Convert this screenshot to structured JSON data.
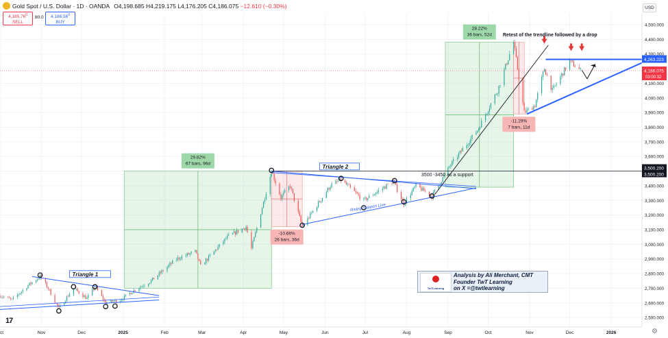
{
  "header": {
    "symbol": "Gold Spot / U.S. Dollar · 1D · OANDA",
    "open": "O4,198.685",
    "high": "H4,219.175",
    "low": "L4,176.205",
    "close": "C4,186.075",
    "change": "−12.610 (−0.30%)",
    "sell_price": "4,185.76",
    "sell_sup": "0",
    "sell_label": "SELL",
    "spread": "80.0",
    "buy_price": "4,186.56",
    "buy_sup": "0",
    "buy_label": "BUY",
    "currency": "USD"
  },
  "colors": {
    "up": "#26a69a",
    "down": "#ef5350",
    "trend_blue": "#2962ff",
    "price_red": "#f23645",
    "range_green": "#9fd8a8",
    "range_red": "#f7b5b3"
  },
  "chart_data": {
    "type": "candlestick",
    "title": "Gold Spot / U.S. Dollar · 1D · OANDA",
    "y_axis": {
      "ticks": [
        2500,
        2600,
        2700,
        2800,
        2900,
        3000,
        3100,
        3200,
        3300,
        3400,
        3500,
        3600,
        3700,
        3800,
        3900,
        4000,
        4100,
        4200,
        4300,
        4400,
        4500
      ],
      "tick_labels": [
        "2,500.000",
        "2,600.000",
        "2,700.000",
        "2,800.000",
        "2,900.000",
        "3,000.000",
        "3,100.000",
        "3,200.000",
        "3,300.000",
        "3,400.000",
        "3,500.000",
        "3,600.000",
        "3,700.000",
        "3,800.000",
        "3,900.000",
        "4,000.000",
        "4,100.000",
        "4,200.000",
        "4,300.000",
        "4,400.000",
        "4,500.000"
      ],
      "range": [
        2435,
        4575
      ]
    },
    "x_axis": {
      "labels": [
        "Oct",
        "Nov",
        "Dec",
        "2025",
        "Feb",
        "Mar",
        "Apr",
        "May",
        "Jun",
        "Jul",
        "Aug",
        "Sep",
        "Oct",
        "Nov",
        "Dec",
        "2026"
      ],
      "dates": [
        "2024-10-01",
        "2024-11-01",
        "2024-12-01",
        "2025-01-01",
        "2025-02-01",
        "2025-03-01",
        "2025-04-01",
        "2025-05-01",
        "2025-06-01",
        "2025-07-01",
        "2025-08-01",
        "2025-09-01",
        "2025-10-01",
        "2025-11-01",
        "2025-12-01",
        "2026-01-01"
      ],
      "range": [
        "2024-10-01",
        "2026-01-24"
      ]
    },
    "price_series": [
      [
        "2024-10-01",
        2650
      ],
      [
        "2024-10-10",
        2620
      ],
      [
        "2024-10-22",
        2720
      ],
      [
        "2024-10-31",
        2780
      ],
      [
        "2024-11-06",
        2700
      ],
      [
        "2024-11-14",
        2560
      ],
      [
        "2024-11-25",
        2700
      ],
      [
        "2024-12-05",
        2630
      ],
      [
        "2024-12-11",
        2710
      ],
      [
        "2024-12-19",
        2600
      ],
      [
        "2024-12-30",
        2620
      ],
      [
        "2025-01-10",
        2690
      ],
      [
        "2025-01-22",
        2750
      ],
      [
        "2025-02-10",
        2900
      ],
      [
        "2025-02-24",
        2950
      ],
      [
        "2025-02-28",
        2850
      ],
      [
        "2025-03-20",
        3050
      ],
      [
        "2025-04-03",
        3120
      ],
      [
        "2025-04-07",
        2970
      ],
      [
        "2025-04-22",
        3500
      ],
      [
        "2025-04-29",
        3320
      ],
      [
        "2025-05-06",
        3400
      ],
      [
        "2025-05-15",
        3120
      ],
      [
        "2025-06-05",
        3400
      ],
      [
        "2025-06-13",
        3440
      ],
      [
        "2025-06-30",
        3300
      ],
      [
        "2025-07-22",
        3430
      ],
      [
        "2025-07-30",
        3280
      ],
      [
        "2025-08-08",
        3400
      ],
      [
        "2025-08-20",
        3330
      ],
      [
        "2025-09-02",
        3530
      ],
      [
        "2025-09-23",
        3780
      ],
      [
        "2025-10-08",
        4050
      ],
      [
        "2025-10-20",
        4380
      ],
      [
        "2025-10-28",
        3900
      ],
      [
        "2025-11-05",
        3950
      ],
      [
        "2025-11-12",
        4200
      ],
      [
        "2025-11-18",
        4050
      ],
      [
        "2025-12-01",
        4250
      ],
      [
        "2025-12-09",
        4186
      ]
    ],
    "current_price": {
      "value": 4186.075,
      "label": "4,186.075",
      "countdown": "03:00:32"
    },
    "levels": [
      {
        "value": 4263.223,
        "label": "4,263.223"
      },
      {
        "value": 3500.2,
        "label": "3,500.200"
      },
      {
        "value": 3500.2,
        "label": "3,500.200"
      }
    ],
    "range_boxes": [
      {
        "name": "range-1",
        "x0": "2025-01-02",
        "x1": "2025-04-22",
        "y0": 2700,
        "y1": 3500,
        "color": "green",
        "label1": "29.82%",
        "label2": "67 bars, 96d"
      },
      {
        "name": "range-2",
        "x0": "2025-04-22",
        "x1": "2025-05-15",
        "y0": 3120,
        "y1": 3500,
        "color": "red",
        "label1": "-10.66%",
        "label2": "26 bars, 36d"
      },
      {
        "name": "range-3",
        "x0": "2025-08-30",
        "x1": "2025-10-20",
        "y0": 3390,
        "y1": 4380,
        "color": "green",
        "label1": "28.22%",
        "label2": "36 bars, 52d"
      },
      {
        "name": "range-4",
        "x0": "2025-10-20",
        "x1": "2025-10-28",
        "y0": 3890,
        "y1": 4380,
        "color": "red",
        "label1": "-11.29%",
        "label2": "7 bars, 11d"
      }
    ],
    "annotations": {
      "triangle1": "Triangle 1",
      "triangle2": "Triangle 2",
      "support": "3500 -3450 as a support",
      "rising_support": "Rising Support Line",
      "retest": "Retest of the trendline followed by a drop",
      "author_line1": "Analysis by Ali Merchant, CMT",
      "author_line2": "Founder TwT Learning",
      "author_line3": "on X =@twtlearning",
      "logo_text": "TwTLearning"
    }
  }
}
